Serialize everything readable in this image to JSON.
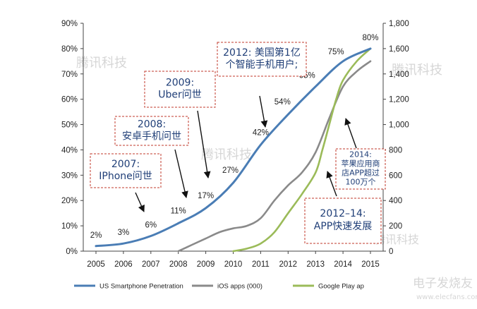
{
  "chart_data": {
    "type": "line",
    "x": [
      "2005",
      "2006",
      "2007",
      "2008",
      "2009",
      "2010",
      "2011",
      "2012",
      "2013",
      "2014",
      "2015"
    ],
    "ylim_left": [
      0,
      90
    ],
    "yticks_left": [
      "0%",
      "10%",
      "20%",
      "30%",
      "40%",
      "50%",
      "60%",
      "70%",
      "80%",
      "90%"
    ],
    "ylim_right": [
      0,
      1800
    ],
    "yticks_right": [
      "0",
      "200",
      "400",
      "600",
      "800",
      "1,000",
      "1,200",
      "1,400",
      "1,600",
      "1,800"
    ],
    "grid": false,
    "legend_position": "bottom",
    "series": [
      {
        "name": "US Smartphone Penetration",
        "axis": "left",
        "color": "#4a7db5",
        "x": [
          2005,
          2006,
          2007,
          2008,
          2009,
          2010,
          2011,
          2012,
          2013,
          2014,
          2015
        ],
        "y": [
          2,
          3,
          6,
          11,
          17,
          27,
          42,
          54,
          65,
          75,
          80
        ],
        "labels": [
          "2%",
          "3%",
          "6%",
          "11%",
          "17%",
          "27%",
          "42%",
          "54%",
          "65%",
          "75%",
          "80%"
        ]
      },
      {
        "name": "iOS apps (000)",
        "axis": "right",
        "color": "#8a8a8a",
        "x": [
          2008,
          2008.5,
          2009,
          2009.5,
          2010,
          2010.5,
          2011,
          2011.5,
          2012,
          2012.5,
          2013,
          2013.5,
          2014,
          2014.5,
          2015
        ],
        "y": [
          0,
          50,
          100,
          150,
          180,
          200,
          260,
          400,
          520,
          620,
          780,
          1050,
          1300,
          1420,
          1500
        ]
      },
      {
        "name": "Google Play apps",
        "legend_label": "Google Play ap",
        "axis": "right",
        "color": "#9bbb59",
        "x": [
          2010,
          2010.5,
          2011,
          2011.5,
          2012,
          2012.5,
          2013,
          2013.25,
          2013.5,
          2013.75,
          2014,
          2014.5,
          2015
        ],
        "y": [
          0,
          20,
          60,
          150,
          300,
          450,
          620,
          800,
          1000,
          1200,
          1350,
          1500,
          1600
        ]
      }
    ],
    "annotations": [
      {
        "lines": [
          "2007:",
          "IPhone问世"
        ]
      },
      {
        "lines": [
          "2008:",
          "安卓手机问世"
        ]
      },
      {
        "lines": [
          "2009:",
          "Uber问世"
        ]
      },
      {
        "lines": [
          "2012: 美国第1亿",
          "个智能手机用户;"
        ]
      },
      {
        "lines": [
          "2014:",
          "苹果应用商",
          "店APP超过",
          "100万个"
        ]
      },
      {
        "lines": [
          "2012–14:",
          "APP快速发展"
        ]
      }
    ]
  },
  "watermarks": [
    "腾讯科技",
    "腾讯科技",
    "腾讯科技",
    "腾讯科技",
    "电子发烧友",
    "www.elecfans.com"
  ]
}
